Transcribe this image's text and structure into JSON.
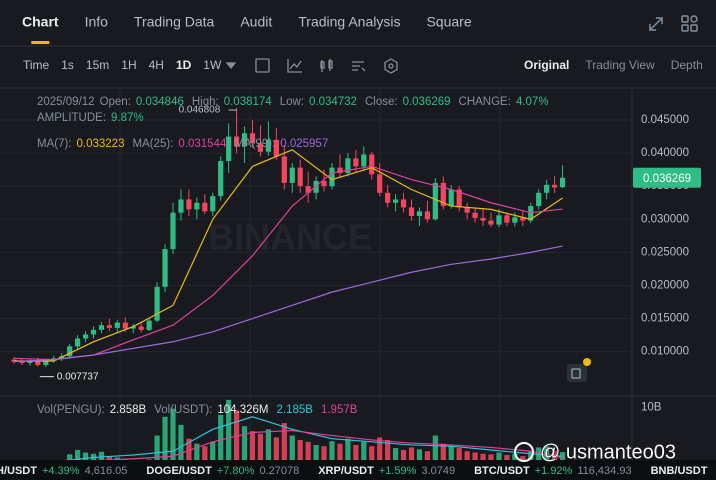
{
  "tabs": [
    "Chart",
    "Info",
    "Trading Data",
    "Audit",
    "Trading Analysis",
    "Square"
  ],
  "intervals": [
    "Time",
    "1s",
    "15m",
    "1H",
    "4H",
    "1D",
    "1W"
  ],
  "views": [
    "Original",
    "Trading View",
    "Depth"
  ],
  "chart_data": {
    "type": "candlestick",
    "watermark": "BINANCE",
    "info_rows": [
      [
        {
          "label": "2025/09/12",
          "value": ""
        },
        {
          "label": "Open:",
          "value": "0.034846"
        },
        {
          "label": "High:",
          "value": "0.038174"
        },
        {
          "label": "Low:",
          "value": "0.034732"
        },
        {
          "label": "Close:",
          "value": "0.036269"
        },
        {
          "label": "CHANGE:",
          "value": "4.07%"
        }
      ],
      [
        {
          "label": "AMPLITUDE:",
          "value": "9.87%"
        }
      ]
    ],
    "up_color": "#2ebd85",
    "down_color": "#f6465d",
    "ylim": [
      0.00346,
      0.04953
    ],
    "yticks": [
      {
        "value": 0.01,
        "label": "0.010000"
      },
      {
        "value": 0.015,
        "label": "0.015000"
      },
      {
        "value": 0.02,
        "label": "0.020000"
      },
      {
        "value": 0.025,
        "label": "0.025000"
      },
      {
        "value": 0.03,
        "label": "0.030000"
      },
      {
        "value": 0.035,
        "label": "0.035000"
      },
      {
        "value": 0.04,
        "label": "0.040000"
      },
      {
        "value": 0.045,
        "label": "0.045000"
      }
    ],
    "grid": true,
    "candles": [
      [
        0.0088,
        0.0092,
        0.0082,
        0.0085
      ],
      [
        0.0085,
        0.009,
        0.008,
        0.0083
      ],
      [
        0.0083,
        0.0088,
        0.0079,
        0.0086
      ],
      [
        0.0086,
        0.0091,
        0.007737,
        0.008
      ],
      [
        0.008,
        0.0088,
        0.0077,
        0.0087
      ],
      [
        0.0087,
        0.0094,
        0.0083,
        0.009
      ],
      [
        0.009,
        0.0098,
        0.0086,
        0.0093
      ],
      [
        0.0093,
        0.0112,
        0.0091,
        0.0108
      ],
      [
        0.0108,
        0.0125,
        0.0104,
        0.012
      ],
      [
        0.012,
        0.0131,
        0.0114,
        0.0126
      ],
      [
        0.0126,
        0.0138,
        0.012,
        0.0133
      ],
      [
        0.0133,
        0.0145,
        0.0128,
        0.014
      ],
      [
        0.014,
        0.015,
        0.0131,
        0.0136
      ],
      [
        0.0136,
        0.0148,
        0.013,
        0.0144
      ],
      [
        0.0144,
        0.0152,
        0.013,
        0.0135
      ],
      [
        0.0135,
        0.0142,
        0.0128,
        0.0138
      ],
      [
        0.0138,
        0.0146,
        0.0129,
        0.0133
      ],
      [
        0.0133,
        0.015,
        0.0131,
        0.0147
      ],
      [
        0.0147,
        0.0205,
        0.0145,
        0.0198
      ],
      [
        0.0198,
        0.0262,
        0.019,
        0.0255
      ],
      [
        0.0255,
        0.0325,
        0.0248,
        0.031
      ],
      [
        0.031,
        0.0345,
        0.0298,
        0.033
      ],
      [
        0.033,
        0.0345,
        0.0305,
        0.0315
      ],
      [
        0.0315,
        0.0333,
        0.03,
        0.0325
      ],
      [
        0.0325,
        0.0338,
        0.0308,
        0.0312
      ],
      [
        0.0312,
        0.034,
        0.0305,
        0.0335
      ],
      [
        0.0335,
        0.0395,
        0.0328,
        0.0388
      ],
      [
        0.0388,
        0.0445,
        0.037,
        0.0425
      ],
      [
        0.0425,
        0.046808,
        0.04,
        0.041
      ],
      [
        0.041,
        0.044,
        0.0385,
        0.043
      ],
      [
        0.043,
        0.045,
        0.0408,
        0.0415
      ],
      [
        0.0415,
        0.0442,
        0.0395,
        0.0402
      ],
      [
        0.0402,
        0.0448,
        0.0396,
        0.042
      ],
      [
        0.042,
        0.0438,
        0.039,
        0.0395
      ],
      [
        0.0395,
        0.0412,
        0.0345,
        0.0355
      ],
      [
        0.0355,
        0.0385,
        0.034,
        0.0378
      ],
      [
        0.0378,
        0.039,
        0.034,
        0.035
      ],
      [
        0.035,
        0.0372,
        0.0325,
        0.034
      ],
      [
        0.034,
        0.0365,
        0.033,
        0.0358
      ],
      [
        0.0358,
        0.0375,
        0.0342,
        0.035
      ],
      [
        0.035,
        0.0385,
        0.0345,
        0.0378
      ],
      [
        0.0378,
        0.0398,
        0.0362,
        0.037
      ],
      [
        0.037,
        0.04,
        0.0365,
        0.0392
      ],
      [
        0.0392,
        0.0405,
        0.0372,
        0.038
      ],
      [
        0.038,
        0.041,
        0.0375,
        0.0398
      ],
      [
        0.0398,
        0.0402,
        0.036,
        0.0368
      ],
      [
        0.0368,
        0.0385,
        0.0335,
        0.034
      ],
      [
        0.034,
        0.0352,
        0.0318,
        0.0325
      ],
      [
        0.0325,
        0.0338,
        0.0312,
        0.033
      ],
      [
        0.033,
        0.034,
        0.031,
        0.0318
      ],
      [
        0.0318,
        0.033,
        0.0298,
        0.0305
      ],
      [
        0.0305,
        0.0318,
        0.029,
        0.0312
      ],
      [
        0.0312,
        0.0328,
        0.0295,
        0.03
      ],
      [
        0.03,
        0.0362,
        0.0298,
        0.0355
      ],
      [
        0.0355,
        0.0365,
        0.0315,
        0.032
      ],
      [
        0.032,
        0.0352,
        0.0316,
        0.0345
      ],
      [
        0.0345,
        0.035,
        0.0312,
        0.0318
      ],
      [
        0.0318,
        0.0325,
        0.03,
        0.031
      ],
      [
        0.031,
        0.0318,
        0.0295,
        0.0302
      ],
      [
        0.0302,
        0.0315,
        0.029,
        0.0298
      ],
      [
        0.0298,
        0.031,
        0.0288,
        0.0292
      ],
      [
        0.0292,
        0.0315,
        0.0288,
        0.0306
      ],
      [
        0.0306,
        0.031,
        0.029,
        0.0295
      ],
      [
        0.0295,
        0.031,
        0.0289,
        0.0303
      ],
      [
        0.0303,
        0.0312,
        0.029,
        0.0298
      ],
      [
        0.0298,
        0.0325,
        0.0294,
        0.032
      ],
      [
        0.032,
        0.0345,
        0.0315,
        0.034
      ],
      [
        0.034,
        0.036,
        0.033,
        0.0352
      ],
      [
        0.0352,
        0.0365,
        0.034,
        0.0348
      ],
      [
        0.034846,
        0.038174,
        0.034732,
        0.036269
      ]
    ],
    "ma": [
      {
        "name": "MA(7):",
        "value_label": "0.033223",
        "color": "#f0b90b",
        "x": [
          0,
          5,
          10,
          15,
          20,
          25,
          30,
          35,
          40,
          45,
          50,
          55,
          60,
          65,
          69
        ],
        "values": [
          0.0086,
          0.0086,
          0.0115,
          0.0138,
          0.017,
          0.03,
          0.038,
          0.0405,
          0.036,
          0.0378,
          0.0345,
          0.032,
          0.0315,
          0.03,
          0.033223
        ]
      },
      {
        "name": "MA(25):",
        "value_label": "0.031544",
        "color": "#e0409a",
        "x": [
          0,
          5,
          10,
          15,
          20,
          25,
          30,
          35,
          40,
          45,
          50,
          55,
          60,
          65,
          69
        ],
        "values": [
          0.009,
          0.0088,
          0.0095,
          0.0118,
          0.014,
          0.0185,
          0.0245,
          0.032,
          0.037,
          0.038,
          0.036,
          0.0345,
          0.0325,
          0.031,
          0.031544
        ]
      },
      {
        "name": "MA(99):",
        "value_label": "0.025957",
        "color": "#9c6ade",
        "x": [
          0,
          5,
          10,
          15,
          20,
          25,
          30,
          35,
          40,
          45,
          50,
          55,
          60,
          65,
          69
        ],
        "values": [
          0.0085,
          0.0088,
          0.0095,
          0.0105,
          0.0115,
          0.013,
          0.015,
          0.017,
          0.019,
          0.0205,
          0.022,
          0.0232,
          0.024,
          0.025,
          0.025957
        ]
      }
    ],
    "volume": {
      "ylim": [
        0,
        11.5
      ],
      "yticks": [
        {
          "value": 10,
          "label": "10B"
        }
      ],
      "legend": [
        {
          "label": "Vol(PENGU):",
          "value": "2.858B",
          "color": "#eaecef"
        },
        {
          "label": "Vol(USDT):",
          "value": "104.326M",
          "color": "#eaecef"
        },
        {
          "label": "",
          "value": "2.185B",
          "color": "#29c5de"
        },
        {
          "label": "",
          "value": "1.957B",
          "color": "#e0409a"
        }
      ],
      "values": [
        1.2,
        1.0,
        1.1,
        1.5,
        1.3,
        1.2,
        1.4,
        2.5,
        3.2,
        2.8,
        2.6,
        2.9,
        2.2,
        2.0,
        1.8,
        1.6,
        1.5,
        1.7,
        5.5,
        8.5,
        9.8,
        7.2,
        5.0,
        4.2,
        3.8,
        4.5,
        8.8,
        11.2,
        9.5,
        7.0,
        6.2,
        5.8,
        6.5,
        5.2,
        7.5,
        5.5,
        4.8,
        4.5,
        4.0,
        3.8,
        4.6,
        4.2,
        5.0,
        4.0,
        4.5,
        3.8,
        5.2,
        4.8,
        3.5,
        3.2,
        3.6,
        3.3,
        3.0,
        5.5,
        4.2,
        3.8,
        3.5,
        3.0,
        2.8,
        2.6,
        2.5,
        2.8,
        2.4,
        2.6,
        2.2,
        3.0,
        3.6,
        3.8,
        3.0,
        2.858
      ],
      "ma": [
        {
          "color": "#29c5de",
          "x": [
            0,
            5,
            10,
            15,
            20,
            25,
            30,
            35,
            40,
            45,
            50,
            55,
            60,
            65,
            69
          ],
          "values": [
            1.2,
            1.3,
            2.0,
            2.4,
            3.0,
            6.5,
            8.5,
            6.5,
            5.0,
            4.5,
            4.0,
            3.8,
            3.2,
            2.6,
            2.185
          ]
        },
        {
          "color": "#e0409a",
          "x": [
            0,
            5,
            10,
            15,
            20,
            25,
            30,
            35,
            40,
            45,
            50,
            55,
            60,
            65,
            69
          ],
          "values": [
            1.0,
            1.1,
            1.5,
            1.8,
            2.2,
            4.5,
            6.0,
            6.3,
            5.5,
            4.8,
            4.3,
            4.0,
            3.6,
            3.0,
            1.957
          ]
        }
      ]
    }
  },
  "ticker": [
    {
      "pair": "H/USDT",
      "change": "+4.39%",
      "price": "4,616.05"
    },
    {
      "pair": "DOGE/USDT",
      "change": "+7.80%",
      "price": "0.27078"
    },
    {
      "pair": "XRP/USDT",
      "change": "+1.59%",
      "price": "3.0749"
    },
    {
      "pair": "BTC/USDT",
      "change": "+1.92%",
      "price": "116,434.93"
    },
    {
      "pair": "BNB/USDT",
      "change": "",
      "price": ""
    }
  ],
  "watermark_user": "@ usmanteo03"
}
